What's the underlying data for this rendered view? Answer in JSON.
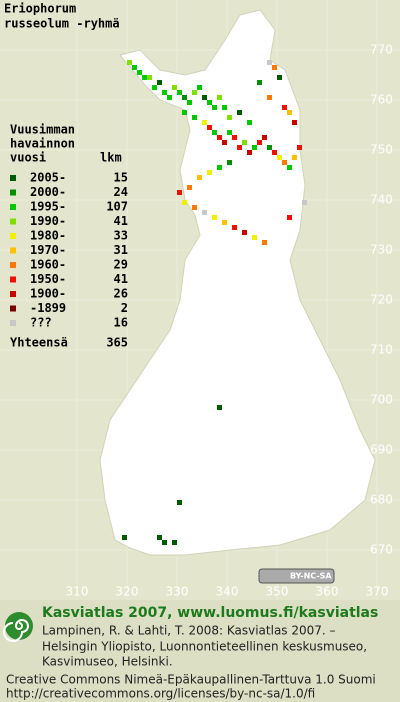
{
  "title": [
    "Eriophorum",
    "russeolum -ryhmä"
  ],
  "legend": {
    "heading": [
      "Vuusimman",
      "havainnon",
      "vuosi"
    ],
    "count_heading": "lkm",
    "rows": [
      {
        "label": "2005-",
        "count": 15,
        "color": "#005a00"
      },
      {
        "label": "2000-",
        "count": 24,
        "color": "#009000"
      },
      {
        "label": "1995-",
        "count": 107,
        "color": "#00c800"
      },
      {
        "label": "1990-",
        "count": 41,
        "color": "#7fe000"
      },
      {
        "label": "1980-",
        "count": 33,
        "color": "#f0f000"
      },
      {
        "label": "1970-",
        "count": 31,
        "color": "#ffc000"
      },
      {
        "label": "1960-",
        "count": 29,
        "color": "#ff7800"
      },
      {
        "label": "1950-",
        "count": 41,
        "color": "#f01000"
      },
      {
        "label": "1900-",
        "count": 26,
        "color": "#c80000"
      },
      {
        "label": "-1899",
        "count": 2,
        "color": "#780000"
      },
      {
        "label": "???",
        "count": 16,
        "color": "#c8c8c8"
      }
    ],
    "total_label": "Yhteensä",
    "total": 365
  },
  "northing_ticks": [
    770,
    760,
    750,
    740,
    730,
    720,
    710,
    700,
    690,
    680,
    670
  ],
  "easting_ticks": [
    310,
    320,
    330,
    340,
    350,
    360,
    370
  ],
  "records": [
    [
      320,
      767,
      3
    ],
    [
      321,
      766,
      2
    ],
    [
      322,
      765,
      2
    ],
    [
      323,
      764,
      2
    ],
    [
      324,
      764,
      3
    ],
    [
      325,
      762,
      2
    ],
    [
      326,
      763,
      0
    ],
    [
      327,
      761,
      2
    ],
    [
      328,
      760,
      2
    ],
    [
      329,
      762,
      3
    ],
    [
      330,
      761,
      2
    ],
    [
      331,
      760,
      1
    ],
    [
      332,
      759,
      2
    ],
    [
      333,
      761,
      3
    ],
    [
      334,
      762,
      2
    ],
    [
      335,
      760,
      0
    ],
    [
      336,
      759,
      2
    ],
    [
      337,
      758,
      2
    ],
    [
      338,
      760,
      3
    ],
    [
      339,
      758,
      2
    ],
    [
      331,
      757,
      2
    ],
    [
      333,
      756,
      2
    ],
    [
      335,
      755,
      4
    ],
    [
      336,
      754,
      7
    ],
    [
      337,
      753,
      2
    ],
    [
      338,
      752,
      7
    ],
    [
      339,
      751,
      8
    ],
    [
      340,
      753,
      2
    ],
    [
      341,
      752,
      7
    ],
    [
      342,
      750,
      7
    ],
    [
      343,
      751,
      3
    ],
    [
      344,
      749,
      8
    ],
    [
      345,
      750,
      2
    ],
    [
      346,
      751,
      7
    ],
    [
      347,
      752,
      8
    ],
    [
      348,
      750,
      1
    ],
    [
      349,
      749,
      7
    ],
    [
      350,
      748,
      4
    ],
    [
      351,
      747,
      6
    ],
    [
      352,
      746,
      2
    ],
    [
      353,
      748,
      5
    ],
    [
      354,
      750,
      7
    ],
    [
      340,
      747,
      1
    ],
    [
      338,
      746,
      2
    ],
    [
      336,
      745,
      4
    ],
    [
      334,
      744,
      5
    ],
    [
      332,
      742,
      6
    ],
    [
      330,
      741,
      7
    ],
    [
      331,
      739,
      4
    ],
    [
      333,
      738,
      6
    ],
    [
      335,
      737,
      10
    ],
    [
      337,
      736,
      4
    ],
    [
      339,
      735,
      5
    ],
    [
      341,
      734,
      7
    ],
    [
      343,
      733,
      8
    ],
    [
      345,
      732,
      4
    ],
    [
      347,
      731,
      6
    ],
    [
      352,
      736,
      7
    ],
    [
      355,
      739,
      10
    ],
    [
      348,
      767,
      10
    ],
    [
      349,
      766,
      6
    ],
    [
      350,
      764,
      0
    ],
    [
      346,
      763,
      1
    ],
    [
      348,
      760,
      6
    ],
    [
      351,
      758,
      7
    ],
    [
      352,
      757,
      5
    ],
    [
      353,
      755,
      8
    ],
    [
      340,
      756,
      3
    ],
    [
      342,
      757,
      0
    ],
    [
      344,
      755,
      2
    ],
    [
      338,
      698,
      0
    ],
    [
      330,
      679,
      0
    ],
    [
      319,
      672,
      0
    ],
    [
      326,
      672,
      0
    ],
    [
      327,
      671,
      0
    ],
    [
      329,
      671,
      0
    ]
  ],
  "badge": "BY-NC-SA",
  "footer": {
    "link": "Kasviatlas 2007, www.luomus.fi/kasviatlas",
    "citation": [
      "Lampinen, R. & Lahti, T. 2008: Kasviatlas 2007. –",
      "Helsingin Yliopisto, Luonnontieteellinen keskusmuseo,",
      "Kasvimuseo, Helsinki."
    ],
    "license": [
      "Creative Commons Nimeä-Epäkaupallinen-Tarttuva 1.0 Suomi",
      "http://creativecommons.org/licenses/by-nc-sa/1.0/fi"
    ]
  }
}
